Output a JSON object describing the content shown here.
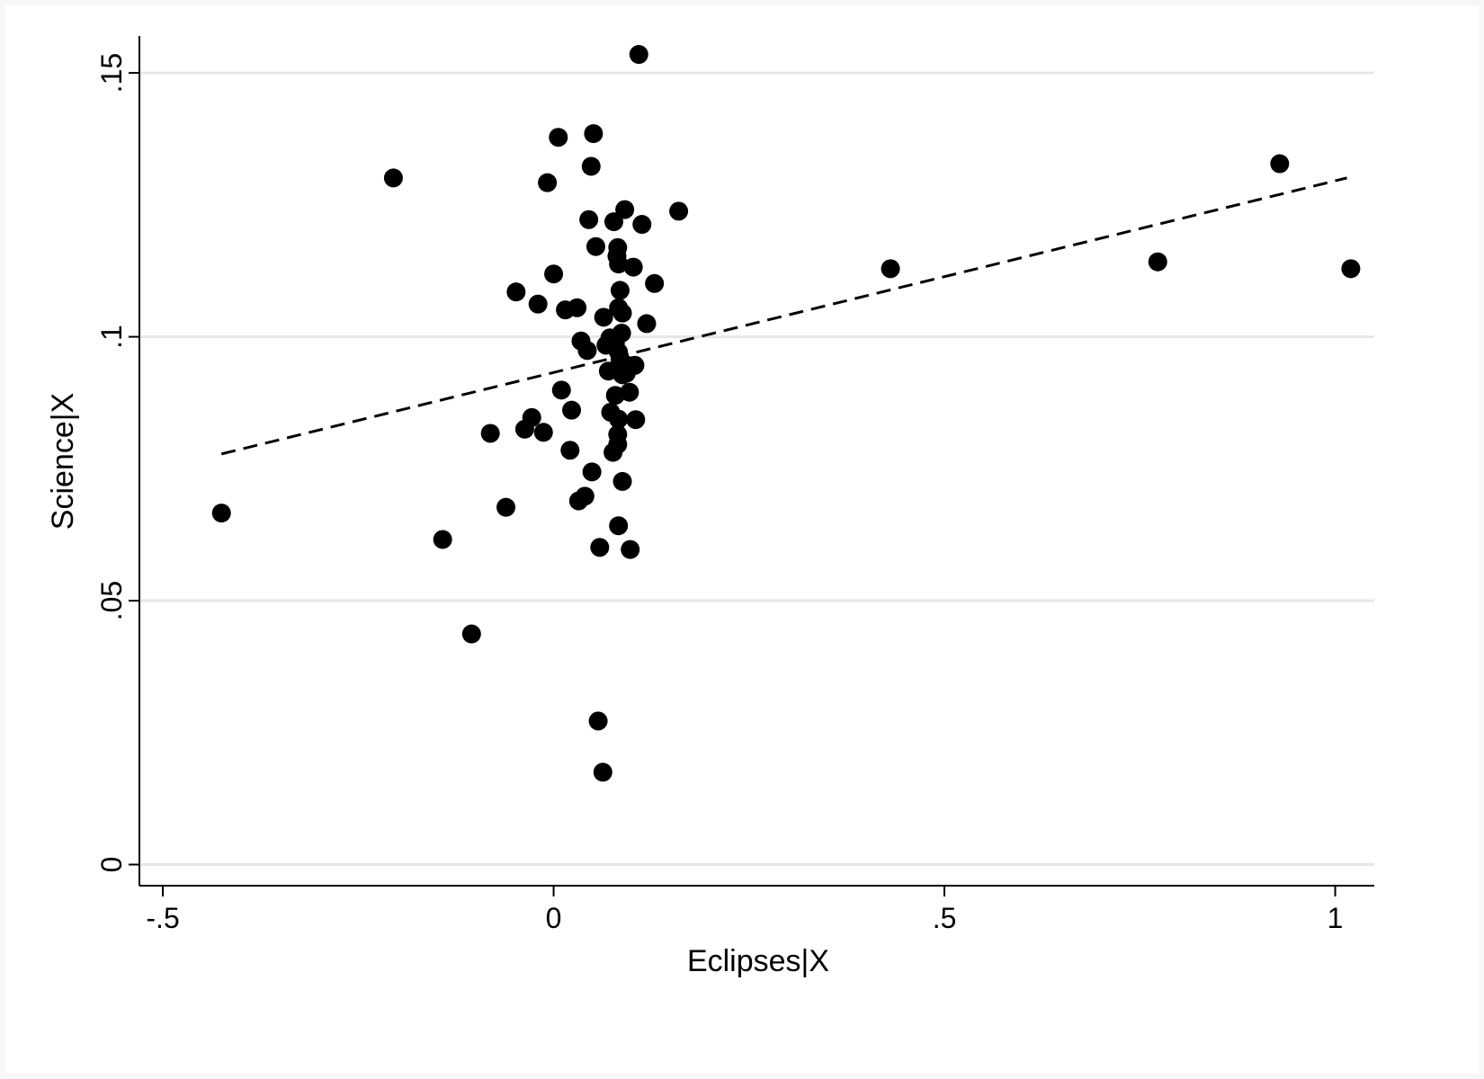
{
  "chart_data": {
    "type": "scatter",
    "title": "",
    "xlabel": "Eclipses|X",
    "ylabel": "Science|X",
    "xlim": [
      -0.53,
      1.05
    ],
    "ylim": [
      -0.004,
      0.157
    ],
    "grid": "horizontal",
    "xticks": [
      {
        "value": -0.5,
        "label": "-.5"
      },
      {
        "value": 0,
        "label": "0"
      },
      {
        "value": 0.5,
        "label": ".5"
      },
      {
        "value": 1,
        "label": "1"
      }
    ],
    "yticks": [
      {
        "value": 0,
        "label": "0"
      },
      {
        "value": 0.05,
        "label": ".05"
      },
      {
        "value": 0.1,
        "label": ".1"
      },
      {
        "value": 0.15,
        "label": ".15"
      }
    ],
    "points": [
      [
        0.109,
        0.1535
      ],
      [
        0.051,
        0.1385
      ],
      [
        0.006,
        0.1378
      ],
      [
        0.048,
        0.1323
      ],
      [
        -0.205,
        0.1301
      ],
      [
        -0.008,
        0.1292
      ],
      [
        0.091,
        0.1241
      ],
      [
        0.16,
        0.1238
      ],
      [
        0.045,
        0.1222
      ],
      [
        0.077,
        0.1218
      ],
      [
        0.113,
        0.1213
      ],
      [
        0.082,
        0.1169
      ],
      [
        0.054,
        0.1171
      ],
      [
        0.081,
        0.1153
      ],
      [
        0.083,
        0.1138
      ],
      [
        0.102,
        0.1132
      ],
      [
        0.0,
        0.1119
      ],
      [
        0.129,
        0.1101
      ],
      [
        -0.048,
        0.1085
      ],
      [
        0.085,
        0.1088
      ],
      [
        -0.02,
        0.1062
      ],
      [
        0.03,
        0.1055
      ],
      [
        0.015,
        0.1051
      ],
      [
        0.083,
        0.1055
      ],
      [
        0.088,
        0.1045
      ],
      [
        0.064,
        0.1037
      ],
      [
        0.119,
        0.1025
      ],
      [
        0.087,
        0.1007
      ],
      [
        0.035,
        0.0992
      ],
      [
        0.072,
        0.0998
      ],
      [
        0.067,
        0.0984
      ],
      [
        0.079,
        0.0988
      ],
      [
        0.043,
        0.0974
      ],
      [
        0.083,
        0.0971
      ],
      [
        0.085,
        0.0957
      ],
      [
        0.094,
        0.0946
      ],
      [
        0.104,
        0.0946
      ],
      [
        0.07,
        0.0935
      ],
      [
        0.088,
        0.0928
      ],
      [
        0.093,
        0.0931
      ],
      [
        0.01,
        0.0899
      ],
      [
        0.097,
        0.0895
      ],
      [
        0.079,
        0.0889
      ],
      [
        0.023,
        0.0861
      ],
      [
        -0.028,
        0.0847
      ],
      [
        0.073,
        0.0857
      ],
      [
        0.105,
        0.0843
      ],
      [
        0.083,
        0.0844
      ],
      [
        -0.037,
        0.0825
      ],
      [
        -0.013,
        0.0819
      ],
      [
        -0.081,
        0.0817
      ],
      [
        0.082,
        0.0815
      ],
      [
        0.082,
        0.0796
      ],
      [
        0.021,
        0.0785
      ],
      [
        0.076,
        0.0781
      ],
      [
        0.049,
        0.0744
      ],
      [
        0.088,
        0.0726
      ],
      [
        0.04,
        0.0698
      ],
      [
        0.032,
        0.0689
      ],
      [
        -0.061,
        0.0677
      ],
      [
        -0.425,
        0.0666
      ],
      [
        0.083,
        0.0642
      ],
      [
        -0.142,
        0.0616
      ],
      [
        0.059,
        0.0601
      ],
      [
        0.098,
        0.0597
      ],
      [
        -0.105,
        0.0437
      ],
      [
        0.057,
        0.0272
      ],
      [
        0.063,
        0.0175
      ],
      [
        0.431,
        0.1129
      ],
      [
        0.773,
        0.1142
      ],
      [
        0.929,
        0.1328
      ],
      [
        1.02,
        0.1129
      ]
    ],
    "fit_line": {
      "style": "dashed",
      "x": [
        -0.425,
        1.015
      ],
      "y": [
        0.0778,
        0.1301
      ]
    }
  }
}
